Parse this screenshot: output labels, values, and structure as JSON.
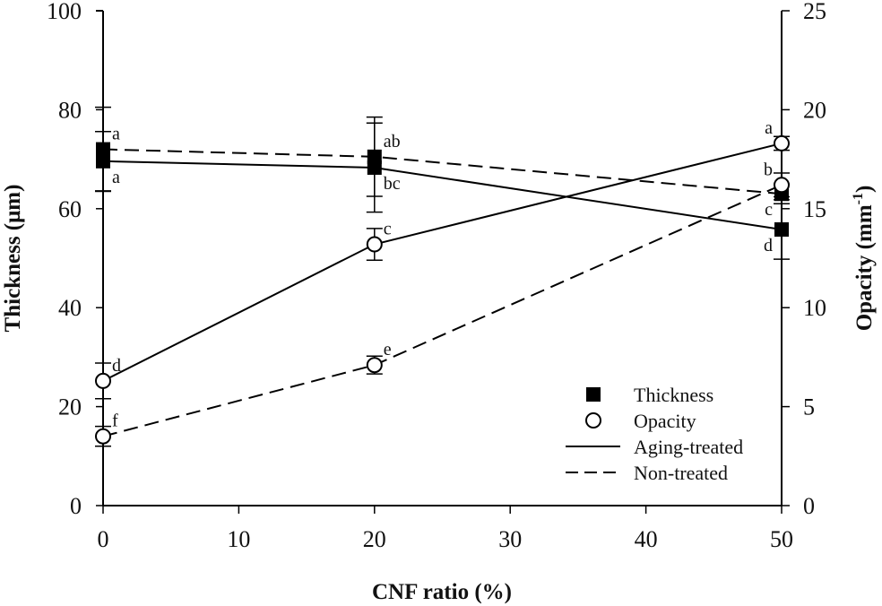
{
  "chart_data": {
    "type": "line",
    "title": "",
    "xlabel": "CNF ratio (%)",
    "ylabel": "Thickness (μm)",
    "y2label_main": "Opacity (mm",
    "y2label_sup": "-1",
    "y2label_close": ")",
    "xlim": [
      0,
      50
    ],
    "ylim": [
      0,
      100
    ],
    "y2lim": [
      0,
      25
    ],
    "x_ticks": [
      0,
      10,
      20,
      30,
      40,
      50
    ],
    "x_tick_labels": [
      "0",
      "10",
      "20",
      "30",
      "40",
      "50"
    ],
    "y_ticks": [
      0,
      20,
      40,
      60,
      80,
      100
    ],
    "y_tick_labels": [
      "0",
      "20",
      "40",
      "60",
      "80",
      "100"
    ],
    "y2_ticks": [
      0,
      5,
      10,
      15,
      20,
      25
    ],
    "y2_tick_labels": [
      "0",
      "5",
      "10",
      "15",
      "20",
      "25"
    ],
    "grid": false,
    "legend_position": "bottom-right",
    "x": [
      0,
      20,
      50
    ],
    "series": [
      {
        "name": "Thickness, Aging-treated",
        "axis": "left",
        "marker": "filled-square",
        "line": "solid",
        "values": [
          69.6,
          68.3,
          55.8
        ],
        "errors": [
          6.0,
          9.0,
          6.0
        ],
        "labels": [
          "a",
          "bc",
          "d"
        ],
        "label_pos": [
          "below",
          "below",
          "below"
        ]
      },
      {
        "name": "Thickness, Non-treated",
        "axis": "left",
        "marker": "filled-square",
        "line": "dashed",
        "values": [
          72.0,
          70.5,
          63.0
        ],
        "errors": [
          8.5,
          8.0,
          2.0
        ],
        "labels": [
          "a",
          "ab",
          "c"
        ],
        "label_pos": [
          "above",
          "above",
          "below"
        ]
      },
      {
        "name": "Opacity, Aging-treated",
        "axis": "right",
        "marker": "open-circle",
        "line": "solid",
        "values": [
          6.3,
          13.2,
          18.3
        ],
        "errors": [
          0.9,
          0.8,
          0.35
        ],
        "labels": [
          "d",
          "c",
          "a"
        ],
        "label_pos": [
          "above",
          "above",
          "above"
        ]
      },
      {
        "name": "Opacity, Non-treated",
        "axis": "right",
        "marker": "open-circle",
        "line": "dashed",
        "values": [
          3.5,
          7.1,
          16.2
        ],
        "errors": [
          0.5,
          0.45,
          0.6
        ],
        "labels": [
          "f",
          "e",
          "b"
        ],
        "label_pos": [
          "above",
          "above",
          "above"
        ]
      }
    ],
    "legend": [
      {
        "symbol": "filled-square",
        "label": "Thickness"
      },
      {
        "symbol": "open-circle",
        "label": "Opacity"
      },
      {
        "symbol": "solid-line",
        "label": "Aging-treated"
      },
      {
        "symbol": "dashed-line",
        "label": "Non-treated"
      }
    ]
  }
}
